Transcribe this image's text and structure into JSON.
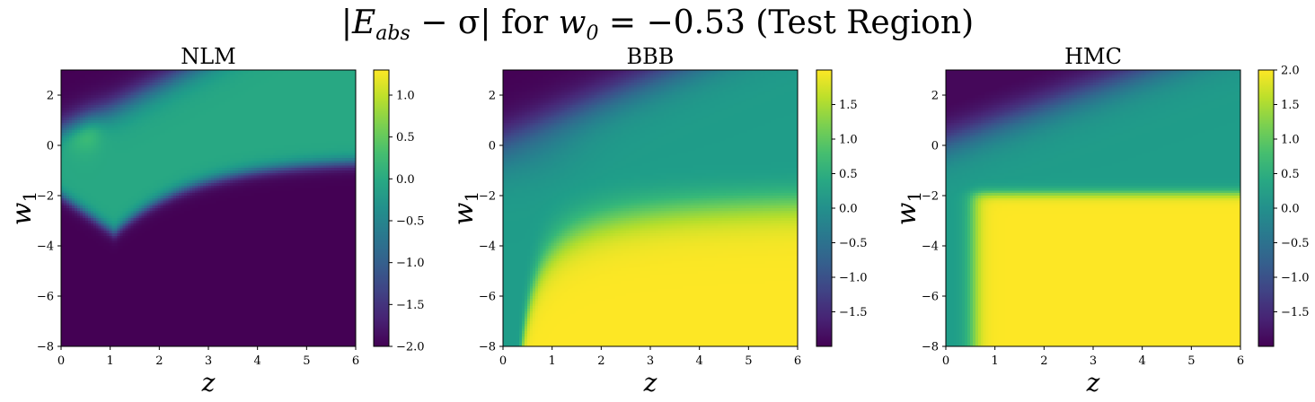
{
  "figure": {
    "title": "|Eabs − σ| for w0 = −0.53 (Test Region)",
    "title_parts": {
      "pre": "|",
      "sym": "E",
      "sub": "abs",
      "mid": " − σ| for ",
      "sym2": "w",
      "sub2": "0",
      "post": " = −0.53 (Test Region)"
    }
  },
  "chart_data": [
    {
      "type": "heatmap",
      "title": "NLM",
      "xlabel": "z",
      "ylabel": "w1",
      "xlim": [
        0,
        6
      ],
      "ylim": [
        -8,
        3
      ],
      "xticks": [
        "0",
        "1",
        "2",
        "3",
        "4",
        "5",
        "6"
      ],
      "yticks": [
        "−8",
        "−6",
        "−4",
        "−2",
        "0",
        "2"
      ],
      "colorbar": {
        "min": -2.0,
        "max": 1.3,
        "ticks": [
          "−2.0",
          "−1.5",
          "−1.0",
          "−0.5",
          "0.0",
          "0.5",
          "1.0"
        ],
        "tick_values": [
          -2.0,
          -1.5,
          -1.0,
          -0.5,
          0.0,
          0.5,
          1.0
        ]
      },
      "colormap": "viridis",
      "pattern": "nlm"
    },
    {
      "type": "heatmap",
      "title": "BBB",
      "xlabel": "z",
      "ylabel": "w1",
      "xlim": [
        0,
        6
      ],
      "ylim": [
        -8,
        3
      ],
      "xticks": [
        "0",
        "1",
        "2",
        "3",
        "4",
        "5",
        "6"
      ],
      "yticks": [
        "−8",
        "−6",
        "−4",
        "−2",
        "0",
        "2"
      ],
      "colorbar": {
        "min": -2.0,
        "max": 2.0,
        "ticks": [
          "−1.5",
          "−1.0",
          "−0.5",
          "0.0",
          "0.5",
          "1.0",
          "1.5"
        ],
        "tick_values": [
          -1.5,
          -1.0,
          -0.5,
          0.0,
          0.5,
          1.0,
          1.5
        ]
      },
      "colormap": "viridis",
      "pattern": "bbb"
    },
    {
      "type": "heatmap",
      "title": "HMC",
      "xlabel": "z",
      "ylabel": "w1",
      "xlim": [
        0,
        6
      ],
      "ylim": [
        -8,
        3
      ],
      "xticks": [
        "0",
        "1",
        "2",
        "3",
        "4",
        "5",
        "6"
      ],
      "yticks": [
        "−8",
        "−6",
        "−4",
        "−2",
        "0",
        "2"
      ],
      "colorbar": {
        "min": -2.0,
        "max": 2.0,
        "ticks": [
          "−1.5",
          "−1.0",
          "−0.5",
          "0.0",
          "0.5",
          "1.0",
          "1.5",
          "2.0"
        ],
        "tick_values": [
          -1.5,
          -1.0,
          -0.5,
          0.0,
          0.5,
          1.0,
          1.5,
          2.0
        ]
      },
      "colormap": "viridis",
      "pattern": "hmc"
    }
  ]
}
